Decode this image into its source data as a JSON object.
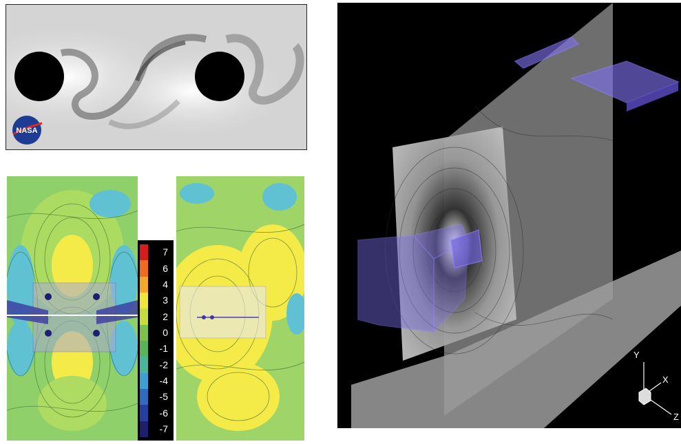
{
  "flow_visualization": {
    "logo_text": "NASA"
  },
  "colorbar": {
    "labels": [
      "7",
      "6",
      "4",
      "3",
      "2",
      "0",
      "-1",
      "-2",
      "-4",
      "-5",
      "-6",
      "-7"
    ],
    "colors": [
      "#d81b1b",
      "#f06a1f",
      "#f3a728",
      "#f1e53a",
      "#c8de3e",
      "#7cc24a",
      "#58b35a",
      "#4bb59a",
      "#3d9fd2",
      "#2f6cc0",
      "#243f9e",
      "#1b1f6e"
    ]
  },
  "axes_3d": {
    "y_label": "Y",
    "x_label": "X",
    "z_label": "Z"
  }
}
